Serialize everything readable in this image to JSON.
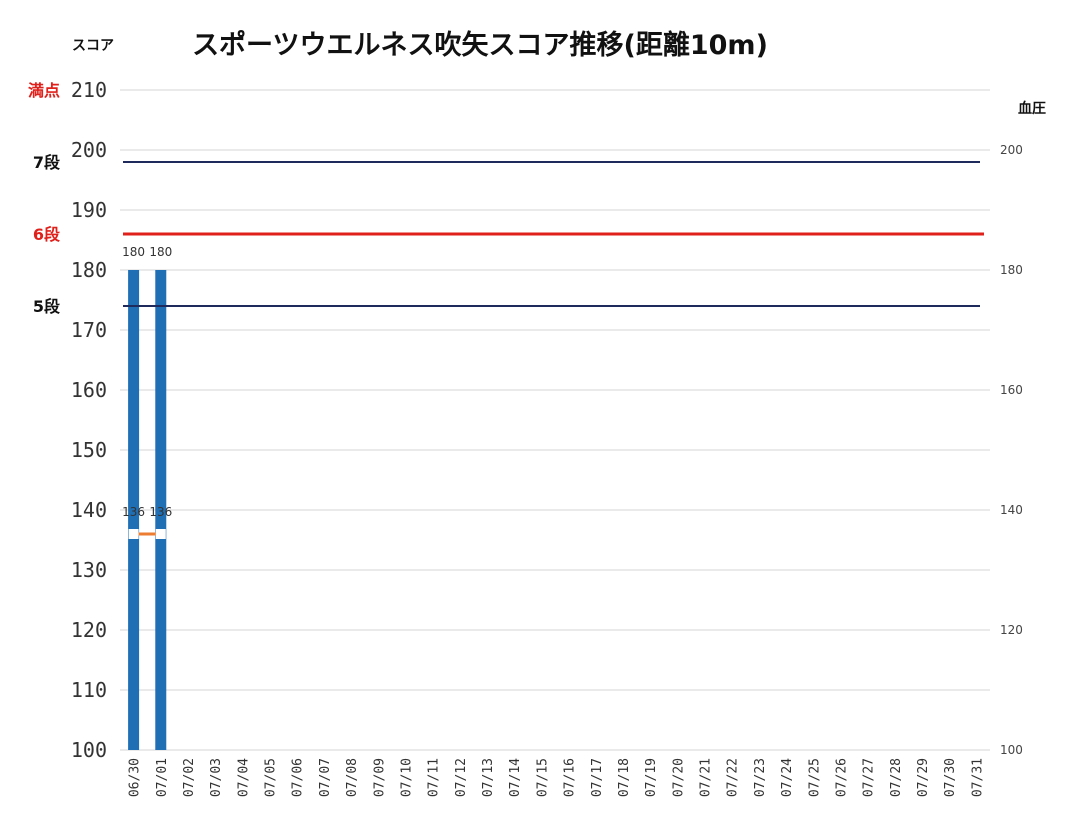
{
  "chart_data": {
    "type": "bar",
    "title": "スポーツウエルネス吹矢スコア推移(距離10m)",
    "ylabel": "スコア",
    "y2label": "血圧",
    "ylim": [
      100,
      210
    ],
    "y2lim": [
      100,
      210
    ],
    "yticks": [
      100,
      110,
      120,
      130,
      140,
      150,
      160,
      170,
      180,
      190,
      200,
      210
    ],
    "y2ticks": [
      100,
      120,
      140,
      160,
      180,
      200
    ],
    "grid": true,
    "categories": [
      "06/30",
      "07/01",
      "07/02",
      "07/03",
      "07/04",
      "07/05",
      "07/06",
      "07/07",
      "07/08",
      "07/09",
      "07/10",
      "07/11",
      "07/12",
      "07/13",
      "07/14",
      "07/15",
      "07/16",
      "07/17",
      "07/18",
      "07/19",
      "07/20",
      "07/21",
      "07/22",
      "07/23",
      "07/24",
      "07/25",
      "07/26",
      "07/27",
      "07/28",
      "07/29",
      "07/30",
      "07/31"
    ],
    "series": [
      {
        "name": "",
        "type": "bar",
        "axis": "left",
        "color": "#1F6FB5",
        "values": [
          180,
          180,
          null,
          null,
          null,
          null,
          null,
          null,
          null,
          null,
          null,
          null,
          null,
          null,
          null,
          null,
          null,
          null,
          null,
          null,
          null,
          null,
          null,
          null,
          null,
          null,
          null,
          null,
          null,
          null,
          null,
          null
        ]
      },
      {
        "name": "",
        "type": "line",
        "axis": "right",
        "color": "#ED7D31",
        "values": [
          136,
          136,
          null,
          null,
          null,
          null,
          null,
          null,
          null,
          null,
          null,
          null,
          null,
          null,
          null,
          null,
          null,
          null,
          null,
          null,
          null,
          null,
          null,
          null,
          null,
          null,
          null,
          null,
          null,
          null,
          null,
          null
        ]
      }
    ],
    "reference_lines": [
      {
        "label": "満点",
        "value": 210,
        "label_color": "#E0201A",
        "line_color": "#CCCCCC"
      },
      {
        "label": "7段",
        "value": 198,
        "label_color": "#111111",
        "line_color": "#1F2A5C"
      },
      {
        "label": "6段",
        "value": 186,
        "label_color": "#E0201A",
        "line_color": "#E0201A"
      },
      {
        "label": "5段",
        "value": 174,
        "label_color": "#111111",
        "line_color": "#1F2A5C"
      }
    ]
  }
}
